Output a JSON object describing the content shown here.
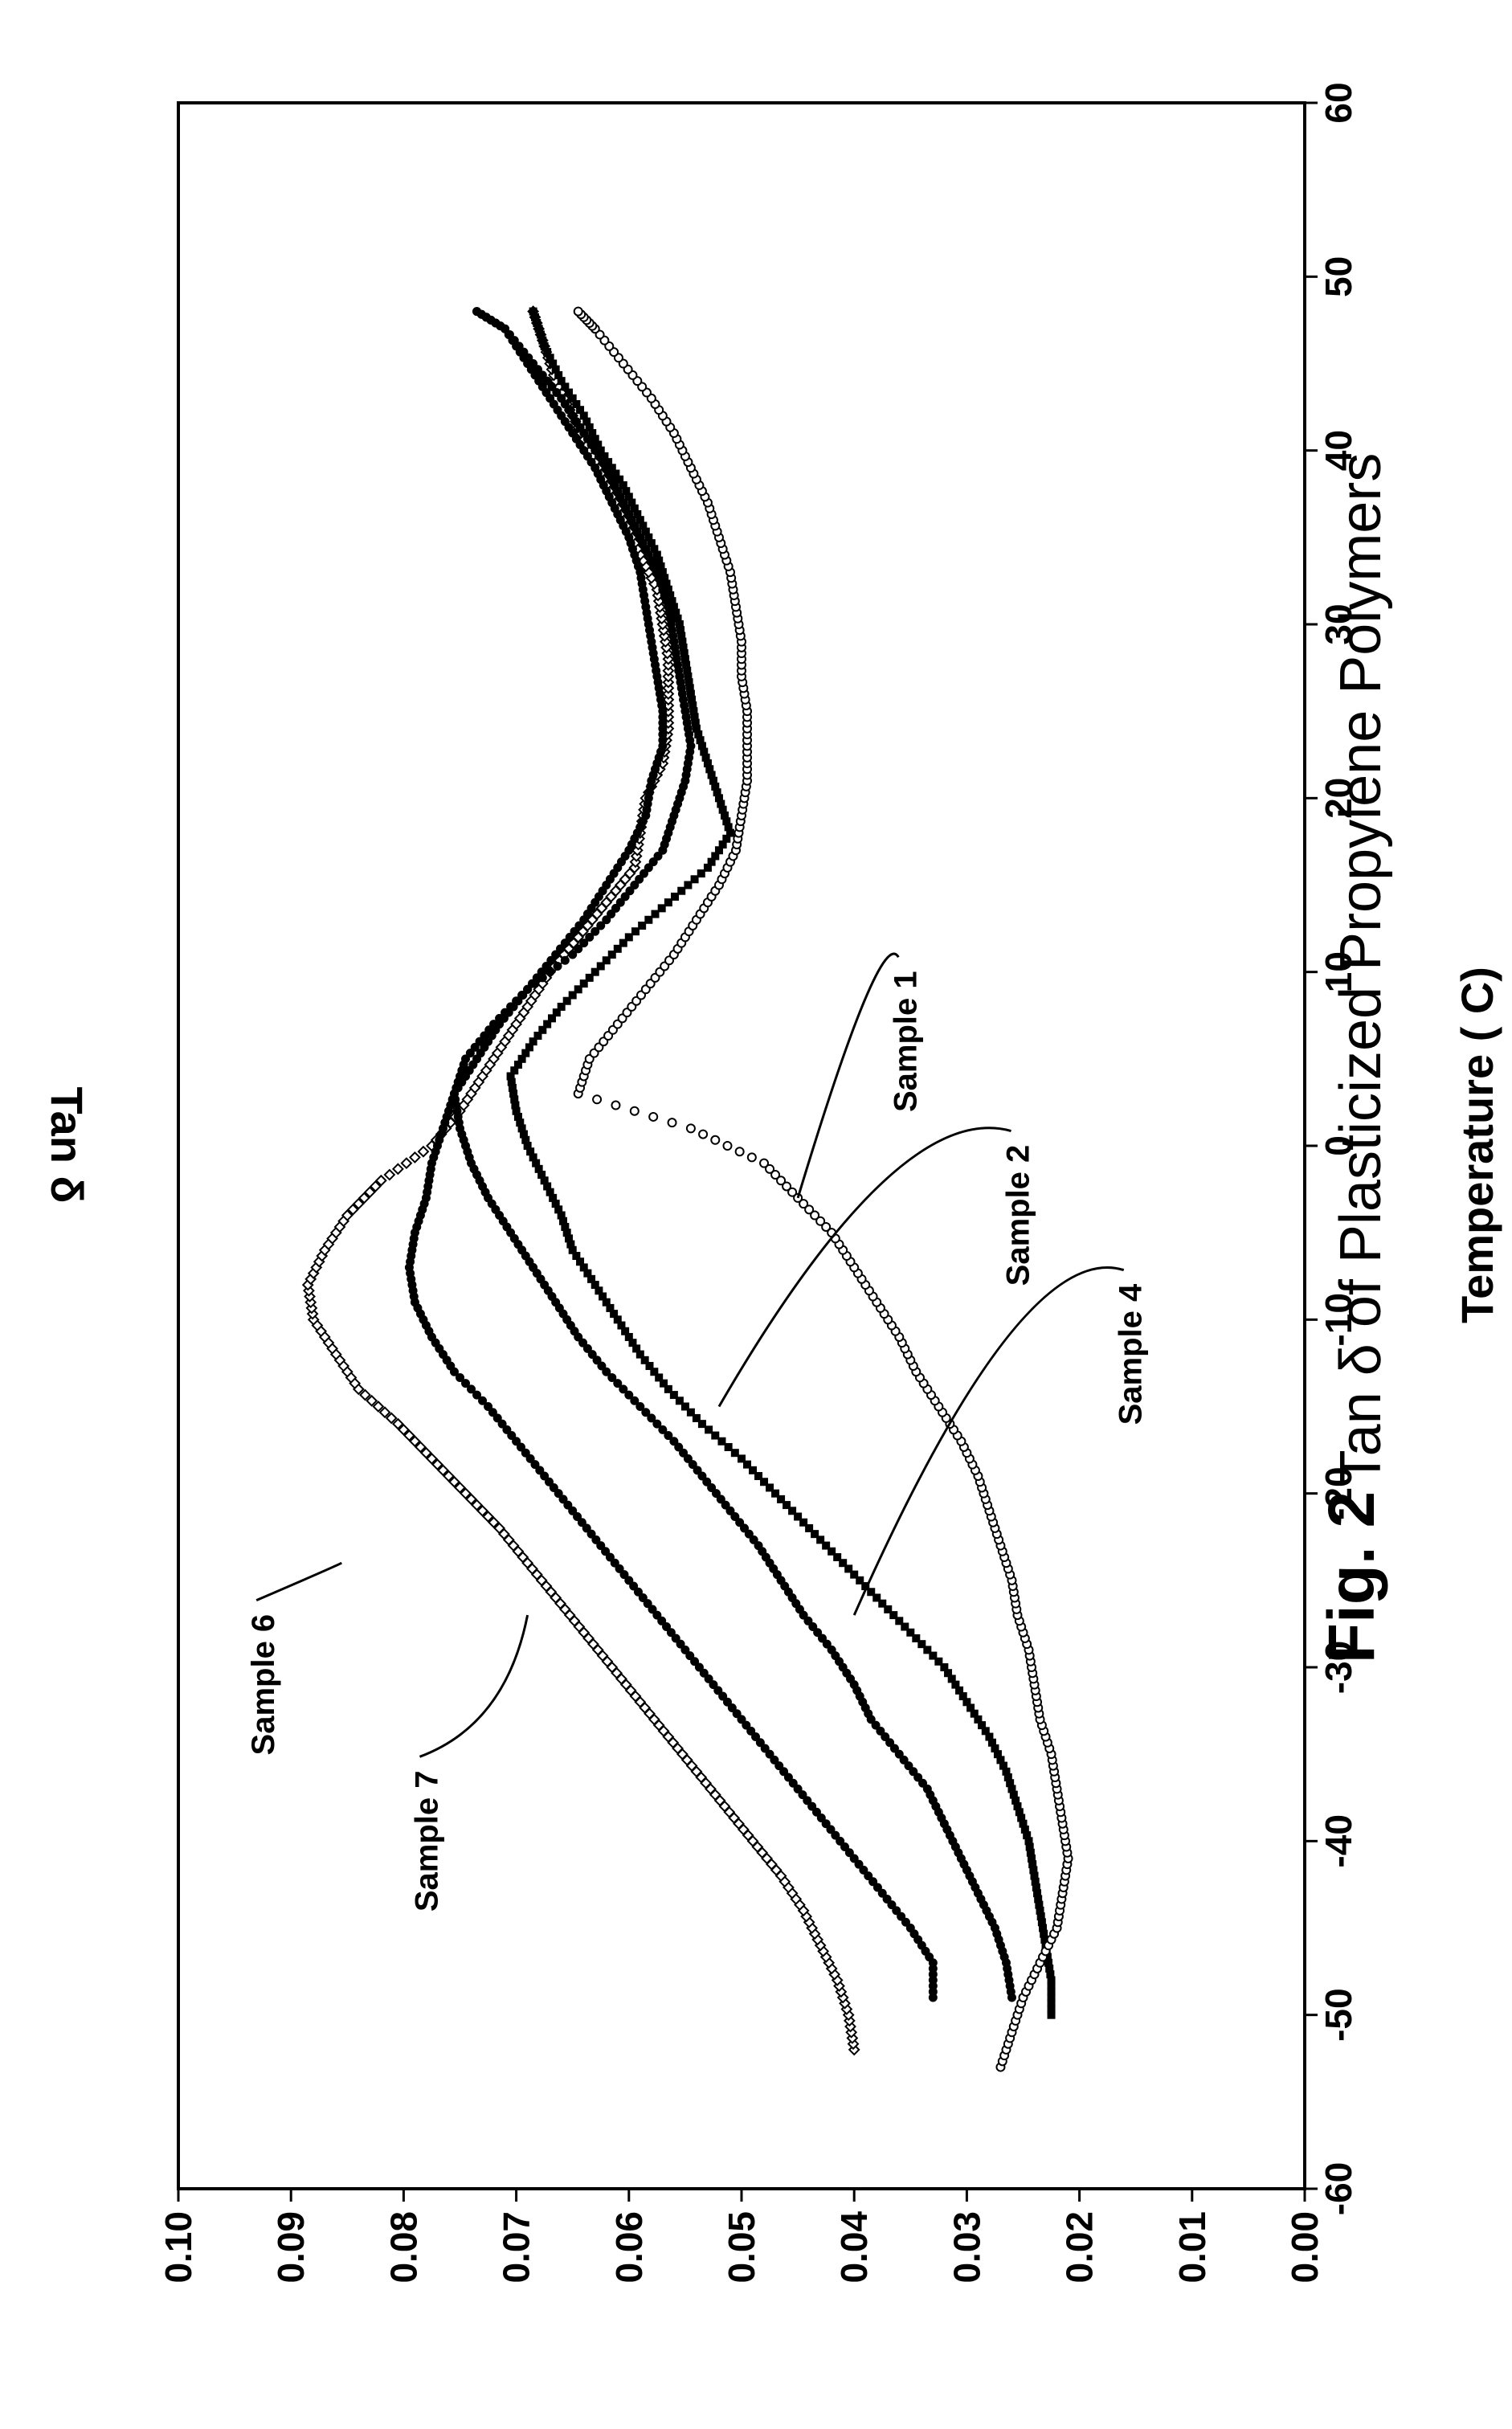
{
  "chart_data": {
    "type": "scatter",
    "figure_label": "Fig. 2",
    "title": "Tan δ of Plasticized Propylene Polymers",
    "xlabel": "Temperature ( C)",
    "ylabel": "Tan δ",
    "xlim": [
      -60,
      60
    ],
    "ylim": [
      0.0,
      0.1
    ],
    "xticks": [
      "-60",
      "-50",
      "-40",
      "-30",
      "-20",
      "-10",
      "0",
      "10",
      "20",
      "30",
      "40",
      "50",
      "60"
    ],
    "yticks": [
      "0.00",
      "0.01",
      "0.02",
      "0.03",
      "0.04",
      "0.05",
      "0.06",
      "0.07",
      "0.08",
      "0.09",
      "0.10"
    ],
    "orientation": "rotated 90° counter-clockwise (x axis runs bottom-to-top, y axis runs right-to-left)",
    "grid": false,
    "marker_colors": [
      "#000000",
      "#ffffff"
    ],
    "series": [
      {
        "name": "Sample 6",
        "marker": "open-diamond",
        "x": [
          -52,
          -50,
          -48,
          -46,
          -44,
          -42,
          -40,
          -38,
          -36,
          -34,
          -32,
          -30,
          -28,
          -26,
          -24,
          -22,
          -20,
          -18,
          -16,
          -14,
          -12,
          -10,
          -8,
          -6,
          -4,
          -2,
          0,
          2,
          4,
          6,
          8,
          10,
          12,
          14,
          16,
          18,
          20,
          22,
          24,
          26,
          28,
          30,
          32,
          34,
          36,
          38,
          40,
          42,
          44,
          46,
          48
        ],
        "y": [
          0.04,
          0.0405,
          0.0415,
          0.043,
          0.0445,
          0.0465,
          0.049,
          0.0515,
          0.054,
          0.0565,
          0.059,
          0.0615,
          0.064,
          0.0665,
          0.069,
          0.0715,
          0.0745,
          0.0775,
          0.0805,
          0.084,
          0.086,
          0.088,
          0.0885,
          0.087,
          0.085,
          0.082,
          0.0775,
          0.075,
          0.073,
          0.071,
          0.069,
          0.067,
          0.0645,
          0.062,
          0.0595,
          0.059,
          0.0585,
          0.057,
          0.0565,
          0.0565,
          0.0565,
          0.057,
          0.0575,
          0.059,
          0.0605,
          0.062,
          0.0635,
          0.065,
          0.0665,
          0.0675,
          0.0685
        ]
      },
      {
        "name": "Sample 7",
        "marker": "filled-circle",
        "x": [
          -49,
          -47,
          -45,
          -43,
          -41,
          -39,
          -37,
          -35,
          -33,
          -31,
          -29,
          -27,
          -25,
          -23,
          -21,
          -19,
          -17,
          -15,
          -13,
          -11,
          -9,
          -7,
          -5,
          -3,
          -1,
          1,
          3,
          5,
          7,
          9,
          11,
          13,
          15,
          17,
          19,
          21,
          23,
          25,
          27,
          29,
          31,
          33,
          35,
          37,
          39,
          41,
          43,
          45,
          47,
          48
        ],
        "y": [
          0.033,
          0.033,
          0.035,
          0.0375,
          0.04,
          0.0425,
          0.045,
          0.0475,
          0.05,
          0.0525,
          0.055,
          0.0575,
          0.06,
          0.0625,
          0.065,
          0.0675,
          0.07,
          0.0725,
          0.0755,
          0.0775,
          0.079,
          0.0795,
          0.079,
          0.078,
          0.0775,
          0.0765,
          0.0755,
          0.0735,
          0.0715,
          0.069,
          0.0665,
          0.064,
          0.062,
          0.06,
          0.0585,
          0.058,
          0.057,
          0.057,
          0.0575,
          0.058,
          0.0585,
          0.059,
          0.06,
          0.0615,
          0.063,
          0.065,
          0.067,
          0.069,
          0.071,
          0.0735
        ]
      },
      {
        "name": "Sample 4",
        "marker": "filled-circle",
        "x": [
          -49,
          -47,
          -45,
          -43,
          -41,
          -39,
          -37,
          -35,
          -33,
          -31,
          -29,
          -27,
          -25,
          -23,
          -21,
          -19,
          -17,
          -15,
          -13,
          -11,
          -9,
          -7,
          -5,
          -3,
          -1,
          1,
          3,
          5,
          7,
          9,
          11,
          13,
          15,
          17,
          19,
          21,
          23,
          25,
          27,
          29,
          31,
          33,
          35,
          37,
          39,
          41,
          43,
          45,
          47,
          48
        ],
        "y": [
          0.026,
          0.0265,
          0.0275,
          0.029,
          0.0305,
          0.032,
          0.0335,
          0.036,
          0.0385,
          0.04,
          0.042,
          0.0445,
          0.0465,
          0.0485,
          0.051,
          0.0535,
          0.056,
          0.059,
          0.062,
          0.0645,
          0.0665,
          0.0685,
          0.0705,
          0.0725,
          0.074,
          0.075,
          0.0755,
          0.0745,
          0.072,
          0.069,
          0.065,
          0.062,
          0.0595,
          0.057,
          0.056,
          0.055,
          0.0545,
          0.055,
          0.0555,
          0.056,
          0.0565,
          0.0575,
          0.059,
          0.0605,
          0.062,
          0.064,
          0.066,
          0.0685,
          0.071,
          0.0735
        ]
      },
      {
        "name": "Sample 2",
        "marker": "filled-square",
        "x": [
          -50,
          -48,
          -46,
          -44,
          -42,
          -40,
          -38,
          -36,
          -34,
          -32,
          -30,
          -28,
          -26,
          -24,
          -22,
          -20,
          -18,
          -16,
          -14,
          -12,
          -10,
          -8,
          -6,
          -4,
          -2,
          0,
          2,
          4,
          6,
          8,
          10,
          12,
          14,
          16,
          18,
          20,
          22,
          24,
          26,
          28,
          30,
          32,
          34,
          36,
          38,
          40,
          42,
          44,
          46,
          48
        ],
        "y": [
          0.0225,
          0.0225,
          0.023,
          0.0235,
          0.024,
          0.0245,
          0.0255,
          0.0265,
          0.028,
          0.03,
          0.032,
          0.035,
          0.038,
          0.041,
          0.044,
          0.047,
          0.05,
          0.0535,
          0.0565,
          0.059,
          0.061,
          0.063,
          0.065,
          0.066,
          0.0675,
          0.069,
          0.07,
          0.0705,
          0.0685,
          0.066,
          0.063,
          0.06,
          0.0565,
          0.053,
          0.051,
          0.052,
          0.053,
          0.054,
          0.0545,
          0.055,
          0.0555,
          0.0565,
          0.0575,
          0.059,
          0.0605,
          0.0625,
          0.064,
          0.066,
          0.0675,
          0.0685
        ]
      },
      {
        "name": "Sample 1",
        "marker": "open-circle",
        "x": [
          -53,
          -51,
          -49,
          -47,
          -45,
          -43,
          -41,
          -39,
          -37,
          -35,
          -33,
          -31,
          -29,
          -27,
          -25,
          -23,
          -21,
          -19,
          -17,
          -15,
          -13,
          -11,
          -9,
          -7,
          -5,
          -3,
          -1,
          1,
          3,
          5,
          7,
          9,
          11,
          13,
          15,
          17,
          19,
          21,
          23,
          25,
          27,
          29,
          31,
          33,
          35,
          37,
          39,
          41,
          43,
          45,
          47,
          48
        ],
        "y": [
          0.027,
          0.026,
          0.025,
          0.0235,
          0.022,
          0.0215,
          0.021,
          0.0215,
          0.022,
          0.0225,
          0.0235,
          0.024,
          0.0245,
          0.0255,
          0.026,
          0.027,
          0.028,
          0.029,
          0.0305,
          0.0325,
          0.0345,
          0.036,
          0.038,
          0.04,
          0.042,
          0.045,
          0.048,
          0.0545,
          0.0645,
          0.0635,
          0.061,
          0.0585,
          0.056,
          0.054,
          0.052,
          0.0505,
          0.05,
          0.0495,
          0.0495,
          0.0495,
          0.05,
          0.05,
          0.0505,
          0.051,
          0.052,
          0.053,
          0.0545,
          0.056,
          0.058,
          0.0605,
          0.063,
          0.0645
        ]
      }
    ]
  }
}
